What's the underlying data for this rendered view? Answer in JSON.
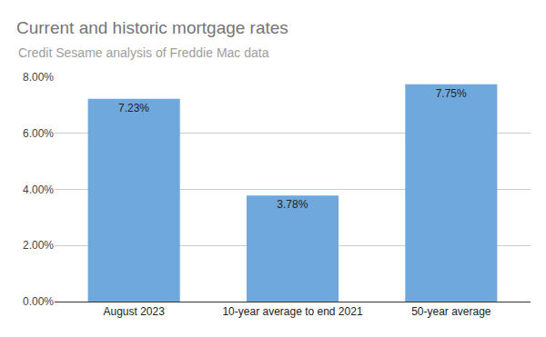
{
  "chart_data": {
    "type": "bar",
    "title": "Current and historic mortgage rates",
    "subtitle": "Credit Sesame analysis of Freddie Mac data",
    "categories": [
      "August 2023",
      "10-year average to end 2021",
      "50-year average"
    ],
    "values": [
      7.23,
      3.78,
      7.75
    ],
    "value_labels": [
      "7.23%",
      "3.78%",
      "7.75%"
    ],
    "color": "#6fa8dc",
    "ylim": [
      0,
      8
    ],
    "yticks": [
      {
        "value": 0,
        "label": "0.00%"
      },
      {
        "value": 2,
        "label": "2.00%"
      },
      {
        "value": 4,
        "label": "4.00%"
      },
      {
        "value": 6,
        "label": "6.00%"
      },
      {
        "value": 8,
        "label": "8.00%"
      }
    ],
    "grid": true,
    "data_labels": true
  }
}
